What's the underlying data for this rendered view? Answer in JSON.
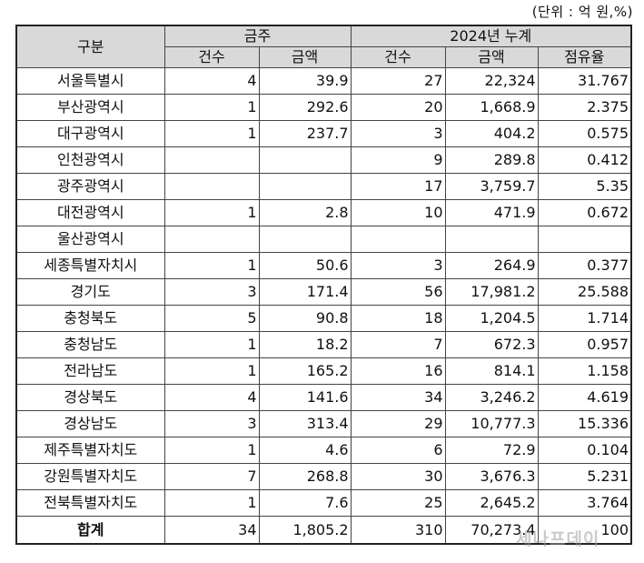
{
  "unit_note": "(단위 : 억 원,%)",
  "header": {
    "region": "구분",
    "group_current": "금주",
    "group_cumulative": "2024년 누계",
    "count": "건수",
    "amount": "금액",
    "count2": "건수",
    "amount2": "금액",
    "share": "점유율"
  },
  "rows": [
    {
      "region": "서울특별시",
      "week_count": "4",
      "week_amount": "39.9",
      "cum_count": "27",
      "cum_amount": "22,324",
      "share": "31.767"
    },
    {
      "region": "부산광역시",
      "week_count": "1",
      "week_amount": "292.6",
      "cum_count": "20",
      "cum_amount": "1,668.9",
      "share": "2.375"
    },
    {
      "region": "대구광역시",
      "week_count": "1",
      "week_amount": "237.7",
      "cum_count": "3",
      "cum_amount": "404.2",
      "share": "0.575"
    },
    {
      "region": "인천광역시",
      "week_count": "",
      "week_amount": "",
      "cum_count": "9",
      "cum_amount": "289.8",
      "share": "0.412"
    },
    {
      "region": "광주광역시",
      "week_count": "",
      "week_amount": "",
      "cum_count": "17",
      "cum_amount": "3,759.7",
      "share": "5.35"
    },
    {
      "region": "대전광역시",
      "week_count": "1",
      "week_amount": "2.8",
      "cum_count": "10",
      "cum_amount": "471.9",
      "share": "0.672"
    },
    {
      "region": "울산광역시",
      "week_count": "",
      "week_amount": "",
      "cum_count": "",
      "cum_amount": "",
      "share": ""
    },
    {
      "region": "세종특별자치시",
      "week_count": "1",
      "week_amount": "50.6",
      "cum_count": "3",
      "cum_amount": "264.9",
      "share": "0.377"
    },
    {
      "region": "경기도",
      "week_count": "3",
      "week_amount": "171.4",
      "cum_count": "56",
      "cum_amount": "17,981.2",
      "share": "25.588"
    },
    {
      "region": "충청북도",
      "week_count": "5",
      "week_amount": "90.8",
      "cum_count": "18",
      "cum_amount": "1,204.5",
      "share": "1.714"
    },
    {
      "region": "충청남도",
      "week_count": "1",
      "week_amount": "18.2",
      "cum_count": "7",
      "cum_amount": "672.3",
      "share": "0.957"
    },
    {
      "region": "전라남도",
      "week_count": "1",
      "week_amount": "165.2",
      "cum_count": "16",
      "cum_amount": "814.1",
      "share": "1.158"
    },
    {
      "region": "경상북도",
      "week_count": "4",
      "week_amount": "141.6",
      "cum_count": "34",
      "cum_amount": "3,246.2",
      "share": "4.619"
    },
    {
      "region": "경상남도",
      "week_count": "3",
      "week_amount": "313.4",
      "cum_count": "29",
      "cum_amount": "10,777.3",
      "share": "15.336"
    },
    {
      "region": "제주특별자치도",
      "week_count": "1",
      "week_amount": "4.6",
      "cum_count": "6",
      "cum_amount": "72.9",
      "share": "0.104"
    },
    {
      "region": "강원특별자치도",
      "week_count": "7",
      "week_amount": "268.8",
      "cum_count": "30",
      "cum_amount": "3,676.3",
      "share": "5.231"
    },
    {
      "region": "전북특별자치도",
      "week_count": "1",
      "week_amount": "7.6",
      "cum_count": "25",
      "cum_amount": "2,645.2",
      "share": "3.764"
    }
  ],
  "total": {
    "region": "합계",
    "week_count": "34",
    "week_amount": "1,805.2",
    "cum_count": "310",
    "cum_amount": "70,273.4",
    "share": "100"
  },
  "watermark": "세나프데이"
}
